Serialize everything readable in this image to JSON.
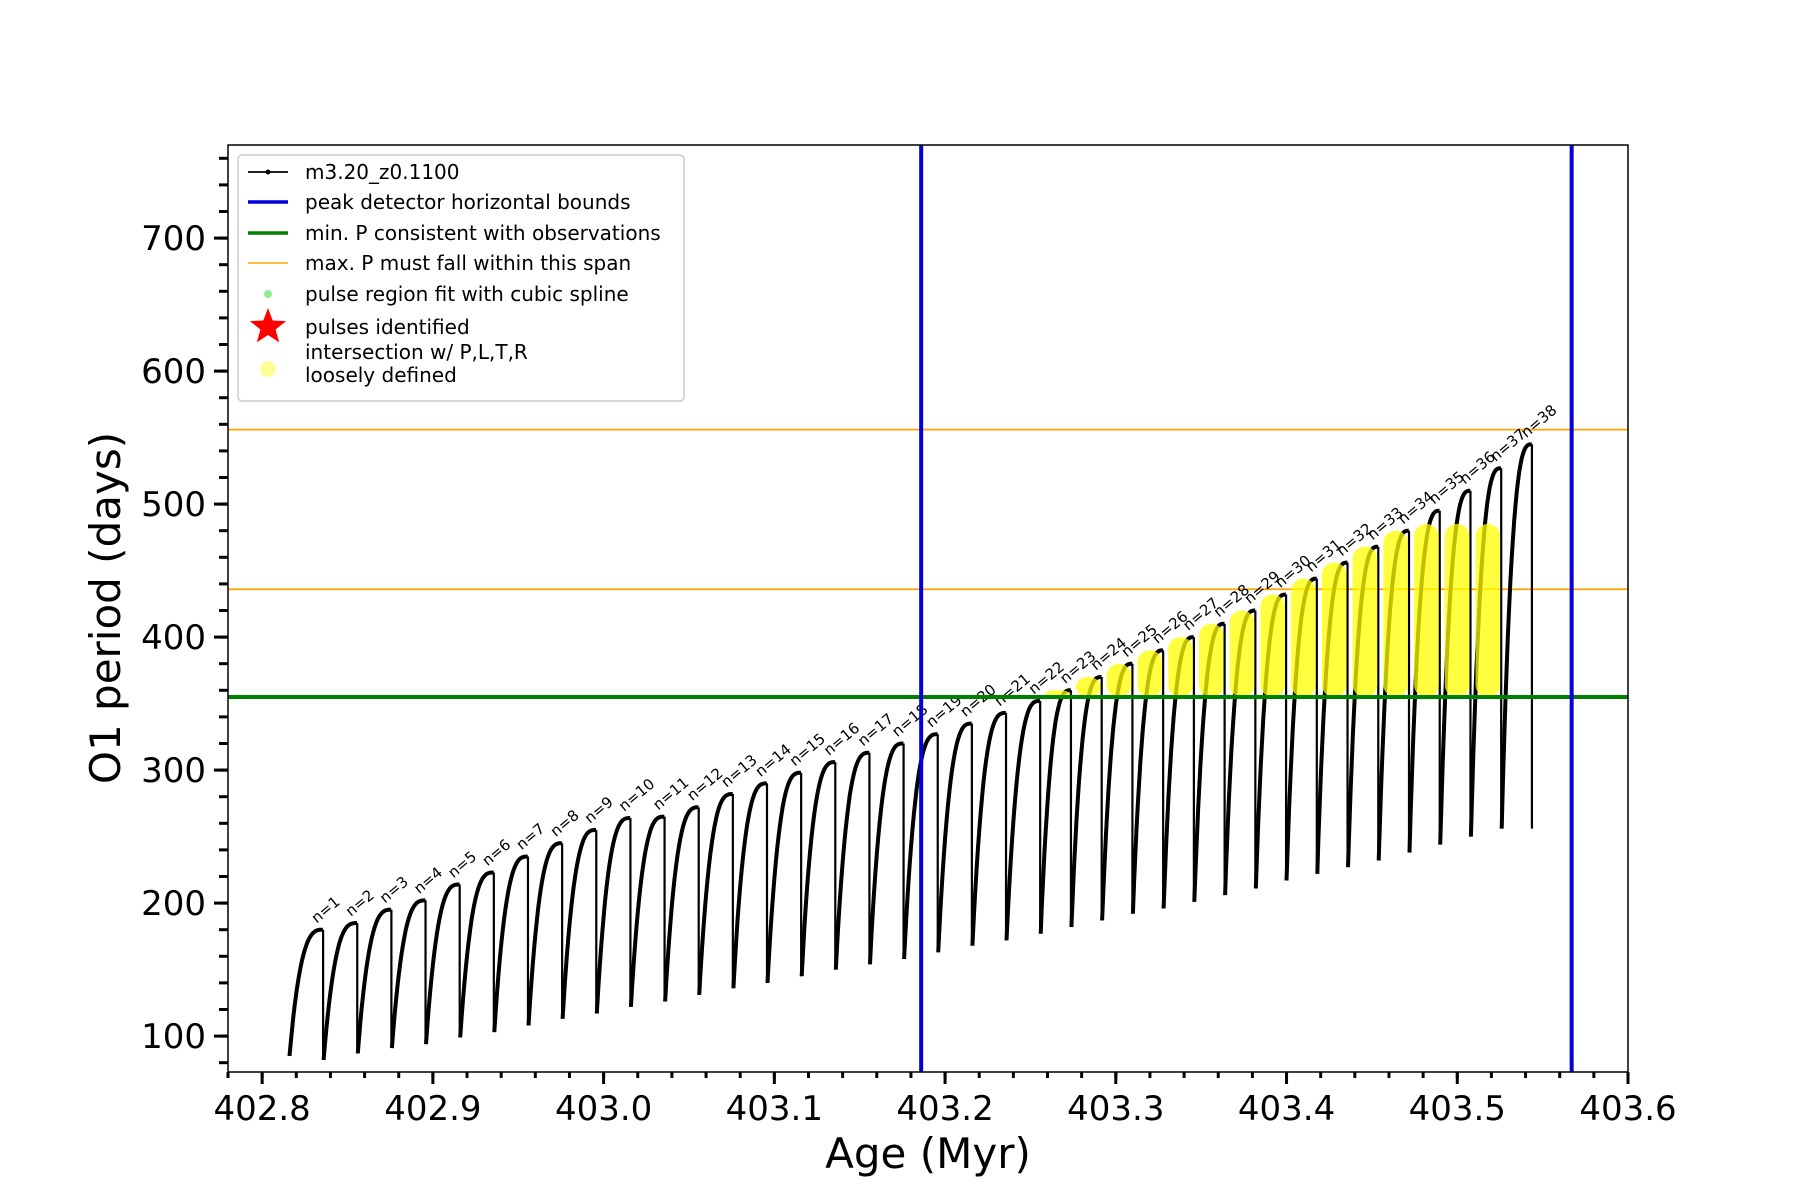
{
  "chart_data": {
    "type": "line",
    "xlabel": "Age (Myr)",
    "ylabel": "O1 period (days)",
    "xlim": [
      402.78,
      403.6
    ],
    "ylim": [
      73,
      770
    ],
    "x_ticks": [
      "402.8",
      "402.9",
      "403.0",
      "403.1",
      "403.2",
      "403.3",
      "403.4",
      "403.5",
      "403.6"
    ],
    "y_ticks": [
      "100",
      "200",
      "300",
      "400",
      "500",
      "600",
      "700"
    ],
    "legend_position": "top-left",
    "legend": [
      {
        "label": "m3.20_z0.1100",
        "kind": "line-marker",
        "color": "#000000"
      },
      {
        "label": "peak detector horizontal bounds",
        "kind": "line",
        "color": "#0000dd"
      },
      {
        "label": "min. P consistent with observations",
        "kind": "line",
        "color": "#008000"
      },
      {
        "label": "max. P must fall within this span",
        "kind": "line",
        "color": "#ffa500"
      },
      {
        "label": "pulse region fit with cubic spline",
        "kind": "dot",
        "color": "#90ee90"
      },
      {
        "label": "pulses identified",
        "kind": "star",
        "color": "#ff0000"
      },
      {
        "label": "intersection w/ P,L,T,R",
        "label2": "loosely defined",
        "kind": "dot",
        "color": "#ffff99"
      }
    ],
    "vertical_lines": [
      403.186,
      403.567
    ],
    "green_line": 355,
    "orange_lines": [
      436,
      556
    ],
    "pulses": [
      {
        "n": "n=1",
        "x": 402.816,
        "min": 85,
        "max": 180
      },
      {
        "n": "n=2",
        "x": 402.836,
        "min": 82,
        "max": 185
      },
      {
        "n": "n=3",
        "x": 402.856,
        "min": 87,
        "max": 195
      },
      {
        "n": "n=4",
        "x": 402.876,
        "min": 91,
        "max": 202
      },
      {
        "n": "n=5",
        "x": 402.896,
        "min": 94,
        "max": 214
      },
      {
        "n": "n=6",
        "x": 402.916,
        "min": 99,
        "max": 223
      },
      {
        "n": "n=7",
        "x": 402.936,
        "min": 103,
        "max": 235
      },
      {
        "n": "n=8",
        "x": 402.956,
        "min": 108,
        "max": 245
      },
      {
        "n": "n=9",
        "x": 402.976,
        "min": 113,
        "max": 255
      },
      {
        "n": "n=10",
        "x": 402.996,
        "min": 117,
        "max": 264
      },
      {
        "n": "n=11",
        "x": 403.016,
        "min": 122,
        "max": 265
      },
      {
        "n": "n=12",
        "x": 403.036,
        "min": 126,
        "max": 272
      },
      {
        "n": "n=13",
        "x": 403.056,
        "min": 131,
        "max": 282
      },
      {
        "n": "n=14",
        "x": 403.076,
        "min": 136,
        "max": 290
      },
      {
        "n": "n=15",
        "x": 403.096,
        "min": 140,
        "max": 298
      },
      {
        "n": "n=16",
        "x": 403.116,
        "min": 145,
        "max": 306
      },
      {
        "n": "n=17",
        "x": 403.136,
        "min": 150,
        "max": 313
      },
      {
        "n": "n=18",
        "x": 403.156,
        "min": 154,
        "max": 320
      },
      {
        "n": "n=19",
        "x": 403.176,
        "min": 158,
        "max": 327
      },
      {
        "n": "n=20",
        "x": 403.196,
        "min": 163,
        "max": 335
      },
      {
        "n": "n=21",
        "x": 403.216,
        "min": 168,
        "max": 343
      },
      {
        "n": "n=22",
        "x": 403.236,
        "min": 172,
        "max": 352
      },
      {
        "n": "n=23",
        "x": 403.256,
        "min": 177,
        "max": 360
      },
      {
        "n": "n=24",
        "x": 403.274,
        "min": 182,
        "max": 370
      },
      {
        "n": "n=25",
        "x": 403.292,
        "min": 187,
        "max": 380
      },
      {
        "n": "n=26",
        "x": 403.31,
        "min": 192,
        "max": 390
      },
      {
        "n": "n=27",
        "x": 403.328,
        "min": 196,
        "max": 400
      },
      {
        "n": "n=28",
        "x": 403.346,
        "min": 201,
        "max": 410
      },
      {
        "n": "n=29",
        "x": 403.364,
        "min": 206,
        "max": 420
      },
      {
        "n": "n=30",
        "x": 403.382,
        "min": 211,
        "max": 432
      },
      {
        "n": "n=31",
        "x": 403.4,
        "min": 217,
        "max": 444
      },
      {
        "n": "n=32",
        "x": 403.418,
        "min": 222,
        "max": 456
      },
      {
        "n": "n=33",
        "x": 403.436,
        "min": 227,
        "max": 468
      },
      {
        "n": "n=34",
        "x": 403.454,
        "min": 232,
        "max": 480
      },
      {
        "n": "n=35",
        "x": 403.472,
        "min": 238,
        "max": 495
      },
      {
        "n": "n=36",
        "x": 403.49,
        "min": 244,
        "max": 510
      },
      {
        "n": "n=37",
        "x": 403.508,
        "min": 250,
        "max": 527
      },
      {
        "n": "n=38",
        "x": 403.526,
        "min": 256,
        "max": 545
      }
    ]
  }
}
